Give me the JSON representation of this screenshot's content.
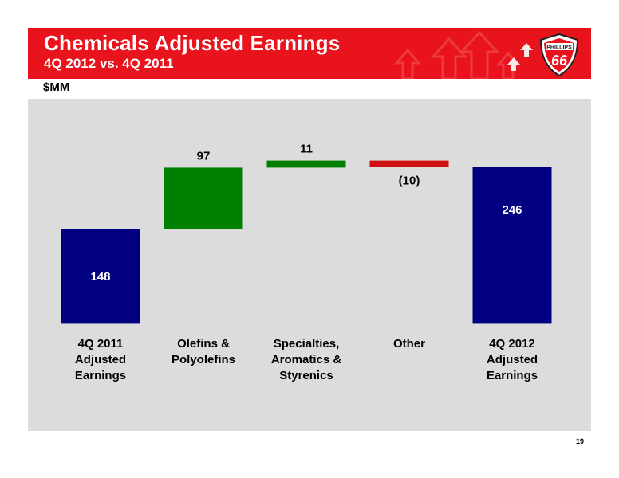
{
  "header": {
    "title": "Chemicals Adjusted Earnings",
    "subtitle": "4Q 2012 vs. 4Q 2011",
    "logo_text_top": "PHILLIPS",
    "logo_text_main": "66"
  },
  "unit_label": "$MM",
  "page_number": "19",
  "colors": {
    "header": "#e8131c",
    "total": "#000080",
    "increase": "#008000",
    "decrease": "#d01010",
    "chart_background": "#dcdcdc"
  },
  "chart_data": {
    "type": "bar",
    "subtype": "waterfall",
    "title": "Chemicals Adjusted Earnings",
    "subtitle": "4Q 2012 vs. 4Q 2011",
    "ylabel": "$MM",
    "categories": [
      [
        "4Q 2011",
        "Adjusted",
        "Earnings"
      ],
      [
        "Olefins &",
        "Polyolefins"
      ],
      [
        "Specialties,",
        "Aromatics &",
        "Styrenics"
      ],
      [
        "Other"
      ],
      [
        "4Q 2012",
        "Adjusted",
        "Earnings"
      ]
    ],
    "values": [
      148,
      97,
      11,
      -10,
      246
    ],
    "kinds": [
      "total",
      "increase",
      "increase",
      "decrease",
      "total"
    ],
    "labels": [
      "148",
      "97",
      "11",
      "(10)",
      "246"
    ],
    "ylim": [
      0,
      300
    ],
    "grid": false,
    "legend": "none"
  }
}
